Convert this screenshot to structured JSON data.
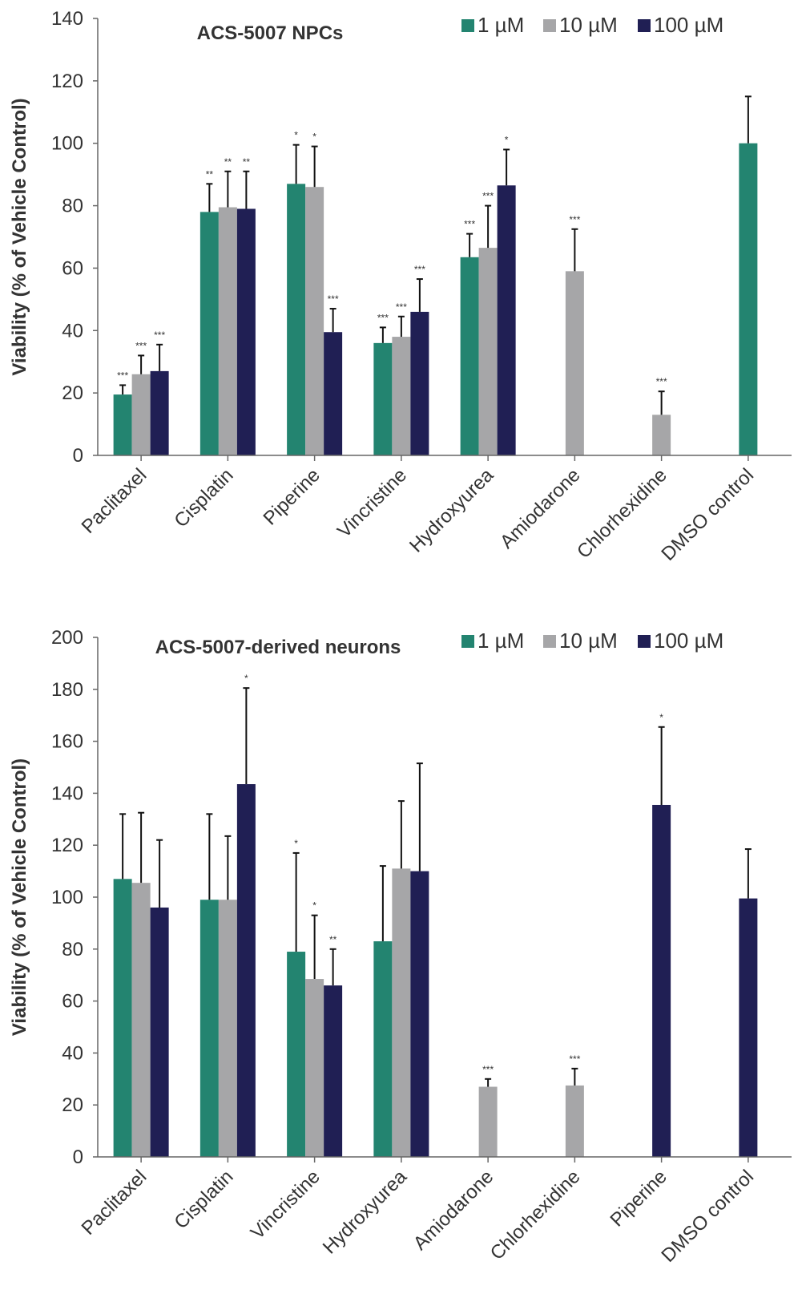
{
  "colors": {
    "1 µM": "#238470",
    "10 µM": "#a6a6a8",
    "100 µM": "#201f54"
  },
  "chart_data": [
    {
      "type": "bar",
      "title": "ACS-5007 NPCs",
      "ylabel": "Viability (% of Vehicle Control)",
      "ylim": [
        0,
        140
      ],
      "yticks": [
        0,
        20,
        40,
        60,
        80,
        100,
        120,
        140
      ],
      "legend": "top-right",
      "categories": [
        "Paclitaxel",
        "Cisplatin",
        "Piperine",
        "Vincristine",
        "Hydroxyurea",
        "Amiodarone",
        "Chlorhexidine",
        "DMSO control"
      ],
      "series": [
        {
          "name": "1 µM",
          "values": [
            19.5,
            78,
            87,
            36,
            63.5,
            null,
            null,
            100
          ],
          "errors": [
            3,
            9,
            12.5,
            5,
            7.5,
            null,
            null,
            15
          ],
          "sig": [
            "***",
            "**",
            "*",
            "***",
            "***",
            "",
            "",
            ""
          ]
        },
        {
          "name": "10 µM",
          "values": [
            26,
            79.5,
            86,
            38,
            66.5,
            59,
            13,
            null
          ],
          "errors": [
            6,
            11.5,
            13,
            6.5,
            13.5,
            13.5,
            7.5,
            null
          ],
          "sig": [
            "***",
            "**",
            "*",
            "***",
            "***",
            "***",
            "***",
            ""
          ]
        },
        {
          "name": "100 µM",
          "values": [
            27,
            79,
            39.5,
            46,
            86.5,
            null,
            null,
            null
          ],
          "errors": [
            8.5,
            12,
            7.5,
            10.5,
            11.5,
            null,
            null,
            null
          ],
          "sig": [
            "***",
            "**",
            "***",
            "***",
            "*",
            "",
            "",
            ""
          ]
        }
      ]
    },
    {
      "type": "bar",
      "title": "ACS-5007-derived neurons",
      "ylabel": "Viability (% of Vehicle Control)",
      "ylim": [
        0,
        200
      ],
      "yticks": [
        0,
        20,
        40,
        60,
        80,
        100,
        120,
        140,
        160,
        180,
        200
      ],
      "legend": "top-right",
      "categories": [
        "Paclitaxel",
        "Cisplatin",
        "Vincristine",
        "Hydroxyurea",
        "Amiodarone",
        "Chlorhexidine",
        "Piperine",
        "DMSO control"
      ],
      "series": [
        {
          "name": "1 µM",
          "values": [
            107,
            99,
            79,
            83,
            null,
            null,
            null,
            null
          ],
          "errors": [
            25,
            33,
            38,
            29,
            null,
            null,
            null,
            null
          ],
          "sig": [
            "",
            "",
            "*",
            "",
            "",
            "",
            "",
            ""
          ]
        },
        {
          "name": "10 µM",
          "values": [
            105.5,
            99,
            68.5,
            111,
            27,
            27.5,
            null,
            null
          ],
          "errors": [
            27,
            24.5,
            24.5,
            26,
            3,
            6.5,
            null,
            null
          ],
          "sig": [
            "",
            "",
            "*",
            "",
            "***",
            "***",
            "",
            ""
          ]
        },
        {
          "name": "100 µM",
          "values": [
            96,
            143.5,
            66,
            110,
            null,
            null,
            135.5,
            99.5
          ],
          "errors": [
            26,
            37,
            14,
            41.5,
            null,
            null,
            30,
            19
          ],
          "sig": [
            "",
            "*",
            "**",
            "",
            "",
            "",
            "*",
            ""
          ]
        }
      ]
    }
  ]
}
